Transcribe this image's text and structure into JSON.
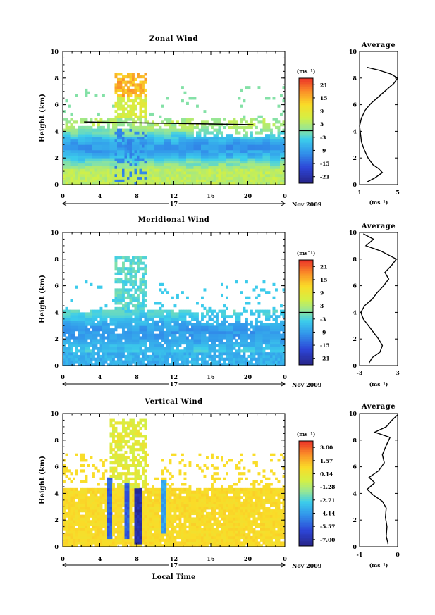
{
  "chart_data": [
    {
      "type": "heatmap",
      "title": "Zonal Wind",
      "ylabel": "Height (km)",
      "xlabel": "",
      "xlim": [
        0,
        24
      ],
      "ylim": [
        0,
        10
      ],
      "x_ticks": [
        "0",
        "4",
        "8",
        "12",
        "16",
        "20",
        "0"
      ],
      "y_ticks": [
        "0",
        "2",
        "4",
        "6",
        "8",
        "10"
      ],
      "day_label": "17",
      "date_label": "Nov 2009",
      "colorbar": {
        "unit": "(ms⁻¹)",
        "ticks": [
          "21",
          "15",
          "9",
          "3",
          "-3",
          "-9",
          "-15",
          "-21"
        ],
        "min": -24,
        "max": 24,
        "marker": 0
      },
      "field": {
        "valid_height_range_km": [
          0,
          5
        ],
        "upper_cloud": {
          "time_range_h": [
            5.5,
            9
          ],
          "height_range_km": [
            5,
            8.5
          ],
          "max_value": 18
        },
        "reference_line": [
          {
            "x": 2.3,
            "y": 4.7
          },
          {
            "x": 20.6,
            "y": 4.5
          }
        ]
      },
      "average_profile": {
        "title": "Average",
        "xlabel": "(ms⁻¹)",
        "xlim": [
          1,
          5
        ],
        "x_ticks": [
          "1",
          "5"
        ],
        "y_ticks": [
          "0",
          "2",
          "4",
          "6",
          "8",
          "10"
        ],
        "ylim": [
          0,
          10
        ],
        "profile": [
          {
            "x": 1.8,
            "y": 0.2
          },
          {
            "x": 2.6,
            "y": 0.5
          },
          {
            "x": 3.4,
            "y": 0.9
          },
          {
            "x": 3.0,
            "y": 1.2
          },
          {
            "x": 2.4,
            "y": 1.5
          },
          {
            "x": 1.9,
            "y": 2.0
          },
          {
            "x": 1.5,
            "y": 2.6
          },
          {
            "x": 1.2,
            "y": 3.2
          },
          {
            "x": 1.1,
            "y": 3.8
          },
          {
            "x": 1.0,
            "y": 4.4
          },
          {
            "x": 1.2,
            "y": 5.0
          },
          {
            "x": 1.6,
            "y": 5.6
          },
          {
            "x": 2.2,
            "y": 6.1
          },
          {
            "x": 3.0,
            "y": 6.6
          },
          {
            "x": 3.8,
            "y": 7.1
          },
          {
            "x": 4.6,
            "y": 7.6
          },
          {
            "x": 5.0,
            "y": 8.0
          },
          {
            "x": 4.3,
            "y": 8.3
          },
          {
            "x": 3.0,
            "y": 8.6
          },
          {
            "x": 1.8,
            "y": 8.8
          }
        ]
      }
    },
    {
      "type": "heatmap",
      "title": "Meridional Wind",
      "ylabel": "Height (km)",
      "xlabel": "",
      "xlim": [
        0,
        24
      ],
      "ylim": [
        0,
        10
      ],
      "x_ticks": [
        "0",
        "4",
        "8",
        "12",
        "16",
        "20",
        "0"
      ],
      "y_ticks": [
        "0",
        "2",
        "4",
        "6",
        "8",
        "10"
      ],
      "day_label": "17",
      "date_label": "Nov 2009",
      "colorbar": {
        "unit": "(ms⁻¹)",
        "ticks": [
          "21",
          "15",
          "9",
          "3",
          "-3",
          "-9",
          "-15",
          "-21"
        ],
        "min": -24,
        "max": 24,
        "marker": 0
      },
      "field": {
        "valid_height_range_km": [
          0,
          4.2
        ],
        "upper_cloud": {
          "time_range_h": [
            5.5,
            9
          ],
          "height_range_km": [
            4.2,
            8.2
          ],
          "max_value": 3
        }
      },
      "average_profile": {
        "title": "Average",
        "xlabel": "(ms⁻¹)",
        "xlim": [
          -3,
          3
        ],
        "x_ticks": [
          "-3",
          "3"
        ],
        "y_ticks": [
          "0",
          "2",
          "4",
          "6",
          "8",
          "10"
        ],
        "ylim": [
          0,
          10
        ],
        "profile": [
          {
            "x": -1.5,
            "y": 0.2
          },
          {
            "x": -1.0,
            "y": 0.6
          },
          {
            "x": 0.2,
            "y": 1.0
          },
          {
            "x": 0.6,
            "y": 1.5
          },
          {
            "x": 0.0,
            "y": 2.0
          },
          {
            "x": -0.8,
            "y": 2.5
          },
          {
            "x": -1.6,
            "y": 3.0
          },
          {
            "x": -2.4,
            "y": 3.5
          },
          {
            "x": -2.8,
            "y": 4.0
          },
          {
            "x": -2.2,
            "y": 4.5
          },
          {
            "x": -1.0,
            "y": 5.0
          },
          {
            "x": -0.2,
            "y": 5.5
          },
          {
            "x": 0.8,
            "y": 6.0
          },
          {
            "x": 1.6,
            "y": 6.5
          },
          {
            "x": 1.0,
            "y": 7.0
          },
          {
            "x": 2.0,
            "y": 7.5
          },
          {
            "x": 2.8,
            "y": 8.0
          },
          {
            "x": 0.4,
            "y": 8.6
          },
          {
            "x": -2.0,
            "y": 9.0
          },
          {
            "x": -0.8,
            "y": 9.5
          },
          {
            "x": -2.4,
            "y": 9.9
          }
        ]
      }
    },
    {
      "type": "heatmap",
      "title": "Vertical Wind",
      "ylabel": "Height (km)",
      "xlabel": "Local Time",
      "xlim": [
        0,
        24
      ],
      "ylim": [
        0,
        10
      ],
      "x_ticks": [
        "0",
        "4",
        "8",
        "12",
        "16",
        "20",
        "0"
      ],
      "y_ticks": [
        "0",
        "2",
        "4",
        "6",
        "8",
        "10"
      ],
      "day_label": "17",
      "date_label": "Nov 2009",
      "colorbar": {
        "unit": "(ms⁻¹)",
        "ticks": [
          "3.00",
          "1.57",
          "0.14",
          "-1.28",
          "-2.71",
          "-4.14",
          "-5.57",
          "-7.00"
        ],
        "min": -7.7,
        "max": 3.7,
        "marker": null
      },
      "field": {
        "valid_height_range_km": [
          0,
          4.5
        ],
        "background_value": 0.8,
        "downdraft_columns": [
          {
            "time_h": 5.0,
            "height_range_km": [
              0.5,
              5.2
            ],
            "value": -5.5
          },
          {
            "time_h": 7.0,
            "height_range_km": [
              0.5,
              4.7
            ],
            "value": -5.5
          },
          {
            "time_h": 8.1,
            "height_range_km": [
              0.2,
              4.5
            ],
            "value": -7.0
          },
          {
            "time_h": 11.0,
            "height_range_km": [
              1.0,
              5.0
            ],
            "value": -4.0
          }
        ],
        "upper_cloud": {
          "time_range_h": [
            5,
            9
          ],
          "height_range_km": [
            4.7,
            9.6
          ],
          "max_value": -2
        }
      },
      "average_profile": {
        "title": "Average",
        "xlabel": "(ms⁻¹)",
        "xlim": [
          -1,
          0
        ],
        "x_ticks": [
          "-1",
          "0"
        ],
        "y_ticks": [
          "0",
          "2",
          "4",
          "6",
          "8",
          "10"
        ],
        "ylim": [
          0,
          10
        ],
        "profile": [
          {
            "x": -0.25,
            "y": 0.2
          },
          {
            "x": -0.3,
            "y": 0.8
          },
          {
            "x": -0.28,
            "y": 1.5
          },
          {
            "x": -0.32,
            "y": 2.2
          },
          {
            "x": -0.3,
            "y": 2.9
          },
          {
            "x": -0.4,
            "y": 3.4
          },
          {
            "x": -0.65,
            "y": 3.9
          },
          {
            "x": -0.8,
            "y": 4.3
          },
          {
            "x": -0.6,
            "y": 4.8
          },
          {
            "x": -0.75,
            "y": 5.2
          },
          {
            "x": -0.5,
            "y": 5.7
          },
          {
            "x": -0.35,
            "y": 6.3
          },
          {
            "x": -0.4,
            "y": 6.9
          },
          {
            "x": -0.3,
            "y": 7.6
          },
          {
            "x": -0.2,
            "y": 8.2
          },
          {
            "x": -0.6,
            "y": 8.6
          },
          {
            "x": -0.3,
            "y": 9.0
          },
          {
            "x": -0.15,
            "y": 9.5
          },
          {
            "x": 0.0,
            "y": 9.9
          }
        ]
      }
    }
  ]
}
